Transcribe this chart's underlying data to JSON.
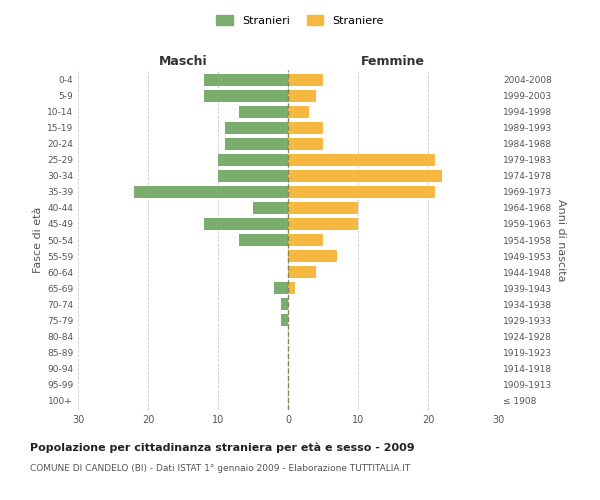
{
  "age_groups": [
    "100+",
    "95-99",
    "90-94",
    "85-89",
    "80-84",
    "75-79",
    "70-74",
    "65-69",
    "60-64",
    "55-59",
    "50-54",
    "45-49",
    "40-44",
    "35-39",
    "30-34",
    "25-29",
    "20-24",
    "15-19",
    "10-14",
    "5-9",
    "0-4"
  ],
  "birth_years": [
    "≤ 1908",
    "1909-1913",
    "1914-1918",
    "1919-1923",
    "1924-1928",
    "1929-1933",
    "1934-1938",
    "1939-1943",
    "1944-1948",
    "1949-1953",
    "1954-1958",
    "1959-1963",
    "1964-1968",
    "1969-1973",
    "1974-1978",
    "1979-1983",
    "1984-1988",
    "1989-1993",
    "1994-1998",
    "1999-2003",
    "2004-2008"
  ],
  "males": [
    0,
    0,
    0,
    0,
    0,
    1,
    1,
    2,
    0,
    0,
    7,
    12,
    5,
    22,
    10,
    10,
    9,
    9,
    7,
    12,
    12
  ],
  "females": [
    0,
    0,
    0,
    0,
    0,
    0,
    0,
    1,
    4,
    7,
    5,
    10,
    10,
    21,
    22,
    21,
    5,
    5,
    3,
    4,
    5
  ],
  "male_color": "#7aad6e",
  "female_color": "#f5b942",
  "grid_color": "#cccccc",
  "center_line_color": "#888855",
  "xlim": 30,
  "title": "Popolazione per cittadinanza straniera per età e sesso - 2009",
  "subtitle": "COMUNE DI CANDELO (BI) - Dati ISTAT 1° gennaio 2009 - Elaborazione TUTTITALIA.IT",
  "xlabel_left": "Maschi",
  "xlabel_right": "Femmine",
  "ylabel_left": "Fasce di età",
  "ylabel_right": "Anni di nascita",
  "legend_male": "Stranieri",
  "legend_female": "Straniere",
  "background_color": "#ffffff",
  "bar_height": 0.75
}
